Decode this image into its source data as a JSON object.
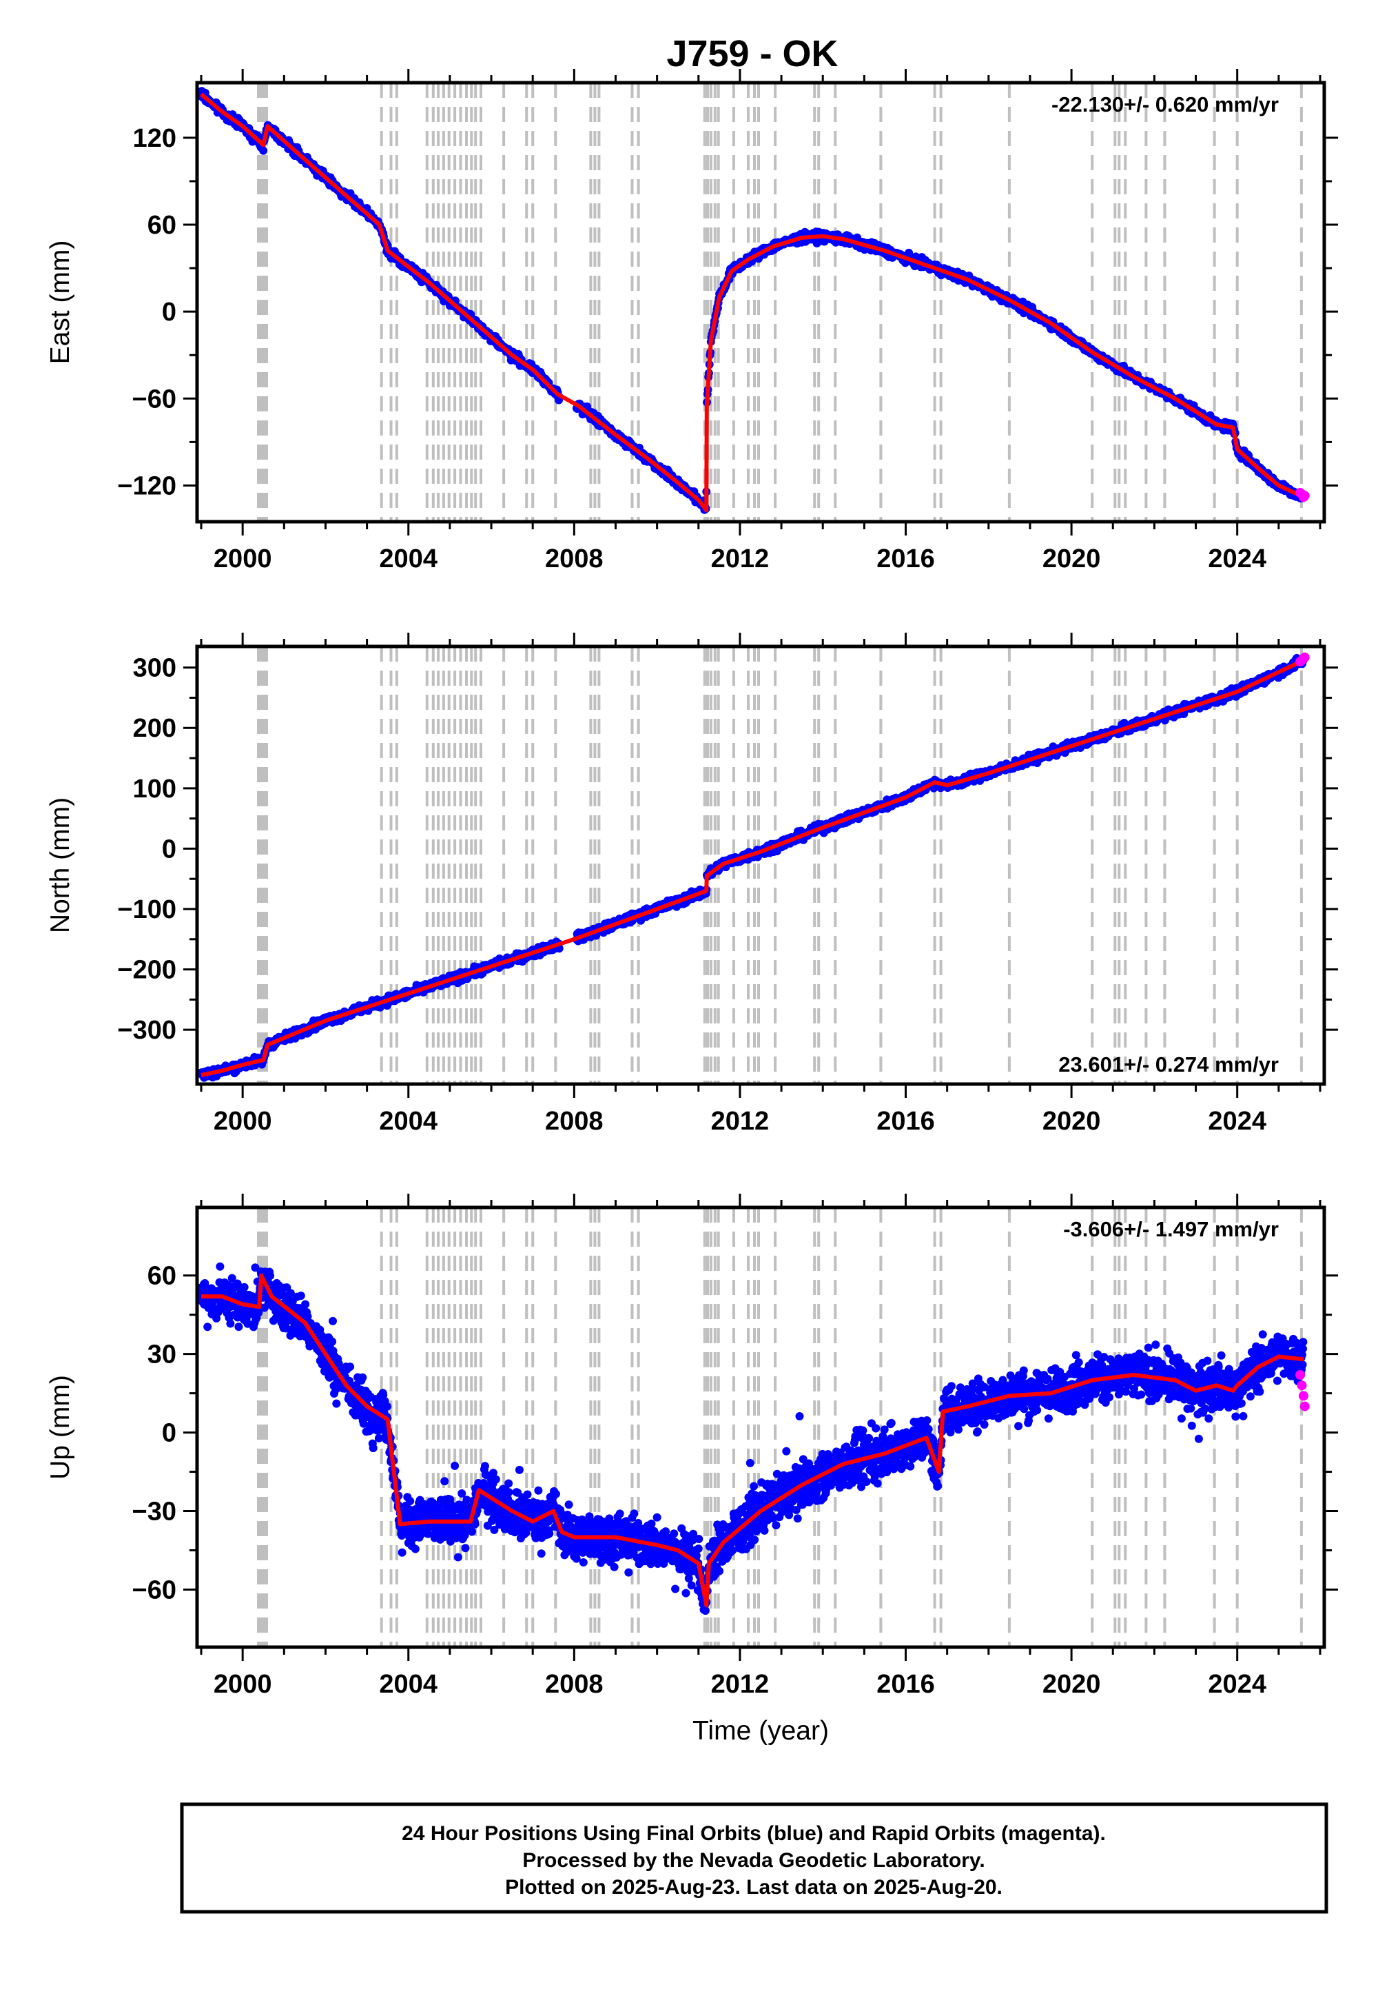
{
  "title": "J759 - OK",
  "footer": {
    "line1": "24 Hour Positions Using Final Orbits (blue) and Rapid Orbits (magenta).",
    "line2": "Processed by the Nevada Geodetic Laboratory.",
    "line3": "Plotted on 2025-Aug-23. Last data on 2025-Aug-20."
  },
  "colors": {
    "final_orbits": "#0000ff",
    "rapid_orbits": "#ff00ff",
    "model": "#ff0000",
    "event_lines": "#bfbfbf"
  },
  "event_years": [
    2000.38,
    2000.42,
    2000.46,
    2000.5,
    2000.54,
    2000.58,
    2003.35,
    2003.58,
    2003.72,
    2004.45,
    2004.6,
    2004.72,
    2004.85,
    2004.98,
    2005.12,
    2005.26,
    2005.4,
    2005.52,
    2005.62,
    2005.75,
    2006.3,
    2006.85,
    2007.0,
    2007.55,
    2008.4,
    2008.5,
    2008.6,
    2009.4,
    2009.55,
    2011.15,
    2011.22,
    2011.3,
    2011.4,
    2011.48,
    2011.85,
    2012.2,
    2012.35,
    2012.45,
    2012.85,
    2013.8,
    2013.9,
    2014.3,
    2015.4,
    2016.7,
    2016.85,
    2018.5,
    2020.5,
    2021.05,
    2021.15,
    2021.3,
    2021.8,
    2022.25,
    2023.45,
    2024.0,
    2025.55
  ],
  "chart_data": [
    {
      "type": "scatter",
      "component": "East",
      "ylabel": "East (mm)",
      "xlabel": "",
      "xlim": [
        1998.9,
        2026.1
      ],
      "ylim": [
        -145,
        158
      ],
      "xticks": [
        2000,
        2004,
        2008,
        2012,
        2016,
        2020,
        2024
      ],
      "yticks": [
        -120,
        -60,
        0,
        60,
        120
      ],
      "rate_label": "-22.130+/- 0.620 mm/yr",
      "rate_position": "top-right",
      "model": {
        "x": [
          1999.0,
          1999.5,
          2000.0,
          2000.5,
          2000.6,
          2001.5,
          2002.5,
          2003.3,
          2003.5,
          2004.5,
          2005.5,
          2006.5,
          2007.0,
          2007.6,
          2008.1,
          2009.0,
          2009.8,
          2010.5,
          2011.0,
          2011.19,
          2011.2,
          2011.3,
          2011.5,
          2011.8,
          2012.2,
          2012.8,
          2013.5,
          2014.0,
          2014.5,
          2015.5,
          2016.5,
          2017.5,
          2018.5,
          2019.5,
          2020.5,
          2021.5,
          2022.5,
          2023.5,
          2023.9,
          2024.0,
          2024.5,
          2025.0,
          2025.6
        ],
        "y": [
          150,
          138,
          128,
          115,
          128,
          105,
          80,
          60,
          42,
          20,
          -5,
          -30,
          -40,
          -57,
          -65,
          -85,
          -102,
          -118,
          -130,
          -137,
          -65,
          -20,
          10,
          28,
          36,
          45,
          51,
          52,
          50,
          42,
          32,
          22,
          8,
          -8,
          -28,
          -45,
          -60,
          -78,
          -80,
          -95,
          -108,
          -120,
          -128
        ]
      },
      "rapid": {
        "x": [
          2025.52,
          2025.56,
          2025.6,
          2025.63
        ],
        "y": [
          -125,
          -126,
          -128,
          -127
        ]
      }
    },
    {
      "type": "scatter",
      "component": "North",
      "ylabel": "North (mm)",
      "xlabel": "",
      "xlim": [
        1998.9,
        2026.1
      ],
      "ylim": [
        -390,
        335
      ],
      "xticks": [
        2000,
        2004,
        2008,
        2012,
        2016,
        2020,
        2024
      ],
      "yticks": [
        -300,
        -200,
        -100,
        0,
        100,
        200,
        300
      ],
      "rate_label": "23.601+/- 0.274 mm/yr",
      "rate_position": "bottom-right",
      "model": {
        "x": [
          1999.0,
          1999.5,
          2000.0,
          2000.5,
          2000.6,
          2002.0,
          2004.0,
          2006.0,
          2008.0,
          2010.0,
          2011.19,
          2011.2,
          2011.6,
          2012.5,
          2014.0,
          2016.0,
          2016.7,
          2017.0,
          2018.0,
          2020.0,
          2022.0,
          2024.0,
          2025.6
        ],
        "y": [
          -375,
          -368,
          -358,
          -350,
          -325,
          -285,
          -240,
          -195,
          -150,
          -100,
          -70,
          -45,
          -25,
          -5,
          35,
          85,
          110,
          105,
          125,
          170,
          215,
          260,
          312
        ]
      },
      "rapid": {
        "x": [
          2025.52,
          2025.56,
          2025.6,
          2025.63
        ],
        "y": [
          310,
          312,
          315,
          317
        ]
      }
    },
    {
      "type": "scatter",
      "component": "Up",
      "ylabel": "Up (mm)",
      "xlabel": "Time (year)",
      "xlim": [
        1998.9,
        2026.1
      ],
      "ylim": [
        -82,
        86
      ],
      "xticks": [
        2000,
        2004,
        2008,
        2012,
        2016,
        2020,
        2024
      ],
      "yticks": [
        -60,
        -30,
        0,
        30,
        60
      ],
      "rate_label": "-3.606+/- 1.497 mm/yr",
      "rate_position": "top-right",
      "scatter_spread_mm": 6,
      "model": {
        "x": [
          1999.0,
          1999.5,
          2000.0,
          2000.4,
          2000.45,
          2000.7,
          2001.5,
          2002.0,
          2002.5,
          2003.0,
          2003.5,
          2003.8,
          2004.5,
          2005.5,
          2005.7,
          2006.5,
          2007.0,
          2007.5,
          2007.7,
          2008.0,
          2009.0,
          2010.0,
          2010.5,
          2011.0,
          2011.19,
          2011.25,
          2011.6,
          2012.5,
          2013.5,
          2014.5,
          2015.5,
          2016.5,
          2016.8,
          2016.9,
          2017.5,
          2018.5,
          2019.5,
          2020.5,
          2021.5,
          2022.5,
          2023.0,
          2023.5,
          2023.9,
          2024.0,
          2024.5,
          2025.0,
          2025.6
        ],
        "y": [
          52,
          52,
          49,
          48,
          60,
          52,
          42,
          30,
          18,
          10,
          5,
          -35,
          -34,
          -34,
          -22,
          -30,
          -34,
          -30,
          -38,
          -40,
          -40,
          -43,
          -45,
          -50,
          -66,
          -50,
          -42,
          -30,
          -20,
          -12,
          -8,
          -2,
          -15,
          8,
          10,
          14,
          15,
          20,
          22,
          20,
          16,
          18,
          16,
          18,
          25,
          29,
          28
        ]
      },
      "rapid": {
        "x": [
          2025.52,
          2025.56,
          2025.6,
          2025.63
        ],
        "y": [
          22,
          18,
          14,
          10
        ]
      }
    }
  ]
}
